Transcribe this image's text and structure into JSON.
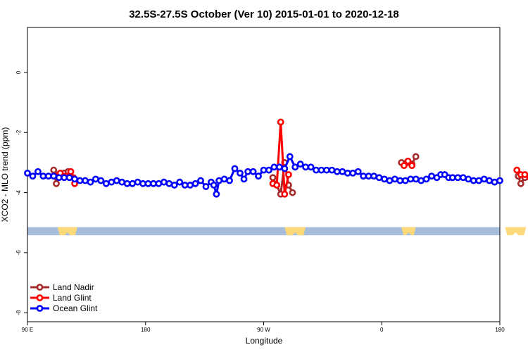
{
  "chart_data": {
    "type": "line",
    "title": "32.5S-27.5S October (Ver 10)   2015-01-01 to 2020-12-18",
    "xlabel": "Longitude",
    "ylabel": "XCO2 - MLO trend (ppm)",
    "xlim": [
      90,
      450
    ],
    "ylim": [
      -8.3,
      1.5
    ],
    "x_ticks": [
      {
        "value": 90,
        "label": "90 E"
      },
      {
        "value": 180,
        "label": "180"
      },
      {
        "value": 270,
        "label": "90 W"
      },
      {
        "value": 360,
        "label": "0"
      },
      {
        "value": 450,
        "label": "180"
      }
    ],
    "y_ticks": [
      {
        "value": 0,
        "label": "0"
      },
      {
        "value": -2,
        "label": "-2"
      },
      {
        "value": -4,
        "label": "-4"
      },
      {
        "value": -6,
        "label": "-6"
      },
      {
        "value": -8,
        "label": "-8"
      }
    ],
    "legend_position": "bottom-left",
    "colors": {
      "land_nadir": "#a52a2a",
      "land_glint": "#ff0000",
      "ocean_glint": "#0000ff",
      "ocean_band": "#a6bddb",
      "land_band": "#fdd97a"
    },
    "surface_band": {
      "y_top": -5.15,
      "y_bottom": -5.42,
      "land_segments": [
        [
          113,
          128
        ],
        [
          286,
          302
        ],
        [
          375,
          386
        ],
        [
          454,
          470
        ],
        [
          578,
          597
        ],
        [
          695,
          740
        ]
      ]
    },
    "series": [
      {
        "name": "Land Nadir",
        "color_key": "land_nadir",
        "segments": [
          [
            [
              110,
              -3.25
            ],
            [
              112,
              -3.7
            ],
            [
              114,
              -3.4
            ],
            [
              118,
              -3.35
            ],
            [
              121,
              -3.3
            ]
          ],
          [
            [
              277,
              -3.5
            ],
            [
              280,
              -3.75
            ],
            [
              283,
              -4.05
            ],
            [
              286,
              -3.0
            ],
            [
              289,
              -3.75
            ],
            [
              292,
              -4.0
            ]
          ],
          [
            [
              375,
              -3.0
            ],
            [
              379,
              -3.0
            ],
            [
              383,
              -3.05
            ],
            [
              386,
              -2.8
            ]
          ],
          [
            [
              464,
              -3.45
            ],
            [
              466,
              -3.7
            ],
            [
              469,
              -3.5
            ],
            [
              474,
              -3.3
            ],
            [
              477,
              -3.45
            ],
            [
              480,
              -3.35
            ],
            [
              484,
              -3.3
            ]
          ]
        ]
      },
      {
        "name": "Land Glint",
        "color_key": "land_glint",
        "segments": [
          [
            [
              111,
              -3.45
            ],
            [
              115,
              -3.35
            ],
            [
              119,
              -3.45
            ],
            [
              123,
              -3.3
            ],
            [
              125,
              -3.5
            ],
            [
              126,
              -3.7
            ]
          ],
          [
            [
              277,
              -3.7
            ],
            [
              280,
              -3.75
            ],
            [
              283,
              -1.65
            ],
            [
              286,
              -4.05
            ],
            [
              289,
              -3.4
            ]
          ],
          [
            [
              377,
              -3.1
            ],
            [
              380,
              -2.95
            ],
            [
              383,
              -3.1
            ]
          ],
          [
            [
              463,
              -3.25
            ],
            [
              466,
              -3.4
            ],
            [
              469,
              -3.4
            ],
            [
              473,
              -3.5
            ],
            [
              476,
              -3.4
            ],
            [
              479,
              -3.6
            ],
            [
              482,
              -3.55
            ],
            [
              485,
              -3.7
            ]
          ]
        ]
      },
      {
        "name": "Ocean Glint",
        "color_key": "ocean_glint",
        "segments": [
          [
            [
              90,
              -3.35
            ],
            [
              94,
              -3.45
            ],
            [
              98,
              -3.3
            ],
            [
              102,
              -3.45
            ],
            [
              106,
              -3.45
            ],
            [
              110,
              -3.45
            ],
            [
              114,
              -3.5
            ],
            [
              118,
              -3.5
            ],
            [
              122,
              -3.5
            ],
            [
              126,
              -3.55
            ],
            [
              130,
              -3.6
            ],
            [
              134,
              -3.6
            ],
            [
              138,
              -3.65
            ],
            [
              142,
              -3.55
            ],
            [
              146,
              -3.6
            ],
            [
              150,
              -3.7
            ],
            [
              154,
              -3.65
            ],
            [
              158,
              -3.6
            ],
            [
              162,
              -3.65
            ],
            [
              166,
              -3.7
            ],
            [
              170,
              -3.7
            ],
            [
              174,
              -3.65
            ],
            [
              178,
              -3.7
            ],
            [
              182,
              -3.7
            ],
            [
              186,
              -3.7
            ],
            [
              190,
              -3.7
            ],
            [
              194,
              -3.65
            ],
            [
              198,
              -3.7
            ],
            [
              202,
              -3.75
            ],
            [
              206,
              -3.65
            ],
            [
              210,
              -3.75
            ],
            [
              214,
              -3.75
            ],
            [
              218,
              -3.7
            ],
            [
              222,
              -3.6
            ],
            [
              226,
              -3.8
            ],
            [
              230,
              -3.65
            ],
            [
              232,
              -3.75
            ],
            [
              234,
              -4.05
            ],
            [
              236,
              -3.6
            ],
            [
              240,
              -3.55
            ],
            [
              244,
              -3.6
            ],
            [
              248,
              -3.2
            ],
            [
              252,
              -3.35
            ],
            [
              255,
              -3.55
            ],
            [
              258,
              -3.3
            ],
            [
              262,
              -3.3
            ],
            [
              266,
              -3.45
            ],
            [
              270,
              -3.25
            ],
            [
              274,
              -3.25
            ],
            [
              278,
              -3.15
            ],
            [
              282,
              -3.15
            ],
            [
              286,
              -3.2
            ],
            [
              290,
              -2.8
            ],
            [
              294,
              -3.15
            ],
            [
              298,
              -3.05
            ],
            [
              302,
              -3.15
            ],
            [
              306,
              -3.15
            ],
            [
              310,
              -3.25
            ],
            [
              314,
              -3.25
            ],
            [
              318,
              -3.25
            ],
            [
              322,
              -3.25
            ],
            [
              326,
              -3.3
            ],
            [
              330,
              -3.3
            ],
            [
              334,
              -3.35
            ],
            [
              338,
              -3.35
            ],
            [
              342,
              -3.3
            ],
            [
              346,
              -3.45
            ],
            [
              350,
              -3.45
            ],
            [
              354,
              -3.45
            ],
            [
              358,
              -3.5
            ],
            [
              362,
              -3.55
            ],
            [
              366,
              -3.6
            ],
            [
              370,
              -3.55
            ],
            [
              374,
              -3.6
            ],
            [
              378,
              -3.6
            ],
            [
              382,
              -3.55
            ],
            [
              386,
              -3.55
            ],
            [
              390,
              -3.6
            ],
            [
              394,
              -3.55
            ],
            [
              398,
              -3.45
            ],
            [
              402,
              -3.5
            ],
            [
              405,
              -3.4
            ],
            [
              408,
              -3.4
            ],
            [
              411,
              -3.5
            ],
            [
              414,
              -3.5
            ],
            [
              418,
              -3.5
            ],
            [
              422,
              -3.5
            ],
            [
              426,
              -3.55
            ],
            [
              430,
              -3.6
            ],
            [
              434,
              -3.6
            ],
            [
              438,
              -3.55
            ],
            [
              442,
              -3.6
            ],
            [
              446,
              -3.65
            ],
            [
              450,
              -3.6
            ]
          ]
        ]
      }
    ]
  }
}
